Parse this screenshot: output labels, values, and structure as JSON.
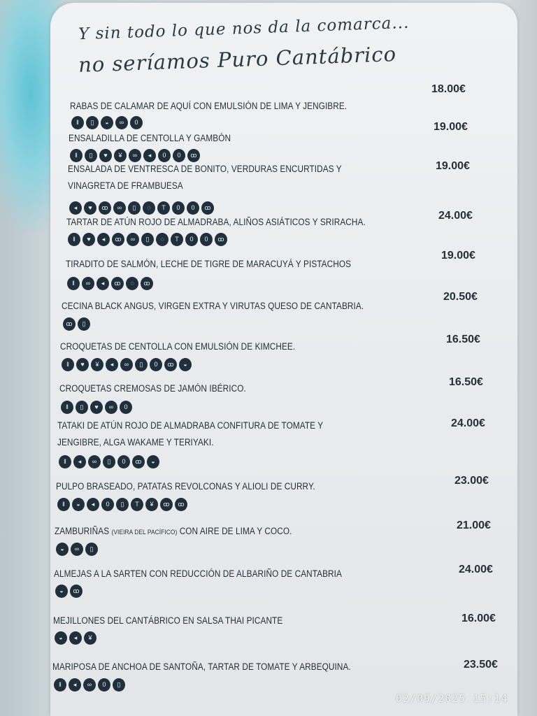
{
  "header": {
    "line1": "Y sin todo lo que nos da la comarca...",
    "line2": "no seríamos Puro Cantábrico"
  },
  "allergen_color": "#1f2f3b",
  "items": [
    {
      "name": "RABAS DE CALAMAR DE AQUÍ CON EMULSIÓN DE LIMA Y JENGIBRE.",
      "price": "18.00€",
      "allergens": [
        "gluten",
        "milk",
        "mollusc",
        "soy",
        "egg"
      ]
    },
    {
      "name": "ENSALADILLA DE CENTOLLA Y GAMBÓN",
      "price": "19.00€",
      "allergens": [
        "gluten",
        "milk",
        "nuts",
        "crustacean",
        "soy",
        "fish",
        "egg",
        "egg",
        "mustard"
      ]
    },
    {
      "name": "ENSALADA DE VENTRESCA DE BONITO, VERDURAS ENCURTIDAS Y",
      "name2": "VINAGRETA DE FRAMBUESA",
      "price": "19.00€",
      "allergens": [
        "fish",
        "nuts",
        "peanut",
        "soy",
        "milk",
        "sesame",
        "celery",
        "egg",
        "egg",
        "mustard"
      ]
    },
    {
      "name": "TARTAR DE ATÚN ROJO DE ALMADRABA, ALIÑOS ASIÁTICOS Y SRIRACHA.",
      "price": "24.00€",
      "allergens": [
        "gluten",
        "nuts",
        "fish",
        "peanut",
        "soy",
        "milk",
        "sesame",
        "celery",
        "egg",
        "egg",
        "mustard"
      ]
    },
    {
      "name": "TIRADITO DE SALMÓN, LECHE DE TIGRE DE MARACUYÁ Y PISTACHOS",
      "price": "19.00€",
      "allergens": [
        "gluten",
        "soy",
        "fish",
        "peanut",
        "sesame",
        "mustard"
      ]
    },
    {
      "name": "CECINA BLACK ANGUS, VIRGEN EXTRA Y VIRUTAS QUESO DE CANTABRIA.",
      "price": "20.50€",
      "allergens": [
        "mustard",
        "milk"
      ]
    },
    {
      "name": "CROQUETAS DE CENTOLLA CON EMULSIÓN DE KIMCHEE.",
      "price": "16.50€",
      "allergens": [
        "gluten",
        "nuts",
        "crustacean",
        "fish",
        "soy",
        "milk",
        "egg",
        "mustard",
        "mollusc"
      ]
    },
    {
      "name": "CROQUETAS CREMOSAS DE JAMÓN IBÉRICO.",
      "price": "16.50€",
      "allergens": [
        "gluten",
        "milk",
        "nuts",
        "soy",
        "egg"
      ]
    },
    {
      "name": "TATAKI DE ATÚN ROJO DE ALMADRABA CONFITURA DE TOMATE Y",
      "name2": "JENGIBRE, ALGA WAKAME Y TERIYAKI.",
      "price": "24.00€",
      "allergens": [
        "gluten",
        "fish",
        "soy",
        "milk",
        "egg",
        "mustard",
        "mollusc"
      ]
    },
    {
      "name": "PULPO BRASEADO, PATATAS REVOLCONAS Y ALIOLI DE CURRY.",
      "price": "23.00€",
      "allergens": [
        "gluten",
        "mollusc",
        "fish",
        "egg",
        "milk",
        "celery",
        "crustacean",
        "mustard",
        "peanut"
      ]
    },
    {
      "name": "ZAMBURIÑAS",
      "name_note": "(VIEIRA DEL PACÍFICO)",
      "name_rest": " CON AIRE DE LIMA Y COCO.",
      "price": "21.00€",
      "allergens": [
        "mollusc",
        "soy",
        "milk"
      ]
    },
    {
      "name": "ALMEJAS A LA SARTEN CON REDUCCIÓN DE ALBARIÑO DE CANTABRIA",
      "price": "24.00€",
      "allergens": [
        "mollusc",
        "mustard"
      ]
    },
    {
      "name": "MEJILLONES DEL CANTÁBRICO EN SALSA THAI PICANTE",
      "price": "16.00€",
      "allergens": [
        "mollusc",
        "fish",
        "crustacean"
      ]
    },
    {
      "name": "MARIPOSA DE ANCHOA DE SANTOÑA, TARTAR DE TOMATE Y ARBEQUINA.",
      "price": "23.50€",
      "allergens": [
        "gluten",
        "fish",
        "soy",
        "egg",
        "milk"
      ]
    }
  ],
  "timestamp": "02/09/2025  15:14"
}
